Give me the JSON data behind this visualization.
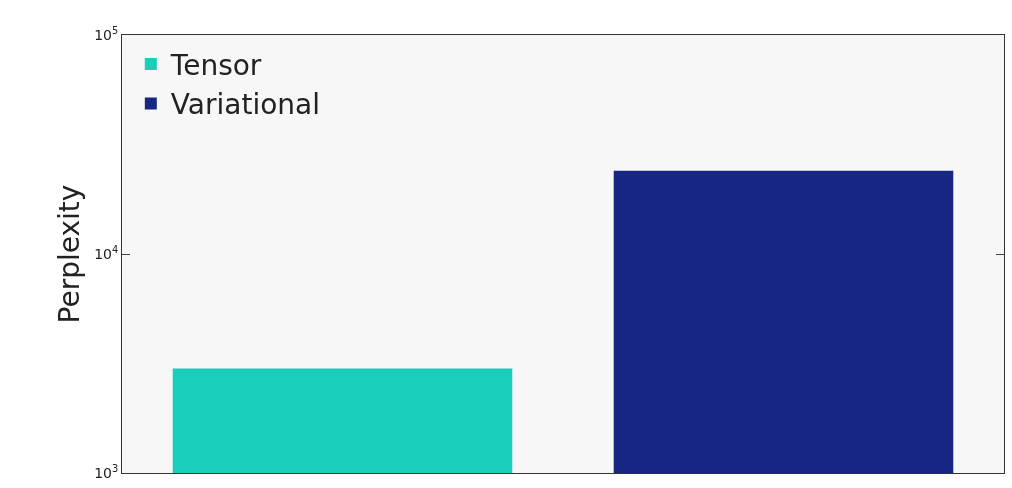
{
  "chart_data": {
    "type": "bar",
    "ylabel": "Perplexity",
    "categories": [
      null,
      null
    ],
    "series": [
      {
        "name": "Tensor",
        "color": "#19cfba",
        "values": [
          3000,
          null
        ]
      },
      {
        "name": "Variational",
        "color": "#162682",
        "values": [
          null,
          24000
        ]
      }
    ],
    "log": true,
    "ylim": [
      1000,
      100000
    ],
    "yticks": [
      {
        "value": 1000,
        "label": "10$^{3}$"
      },
      {
        "value": 10000,
        "label": "10$^{4}$"
      },
      {
        "value": 100000,
        "label": "10$^{5}$"
      }
    ],
    "tick_labels": "y",
    "legend": "top left",
    "grid": false
  }
}
